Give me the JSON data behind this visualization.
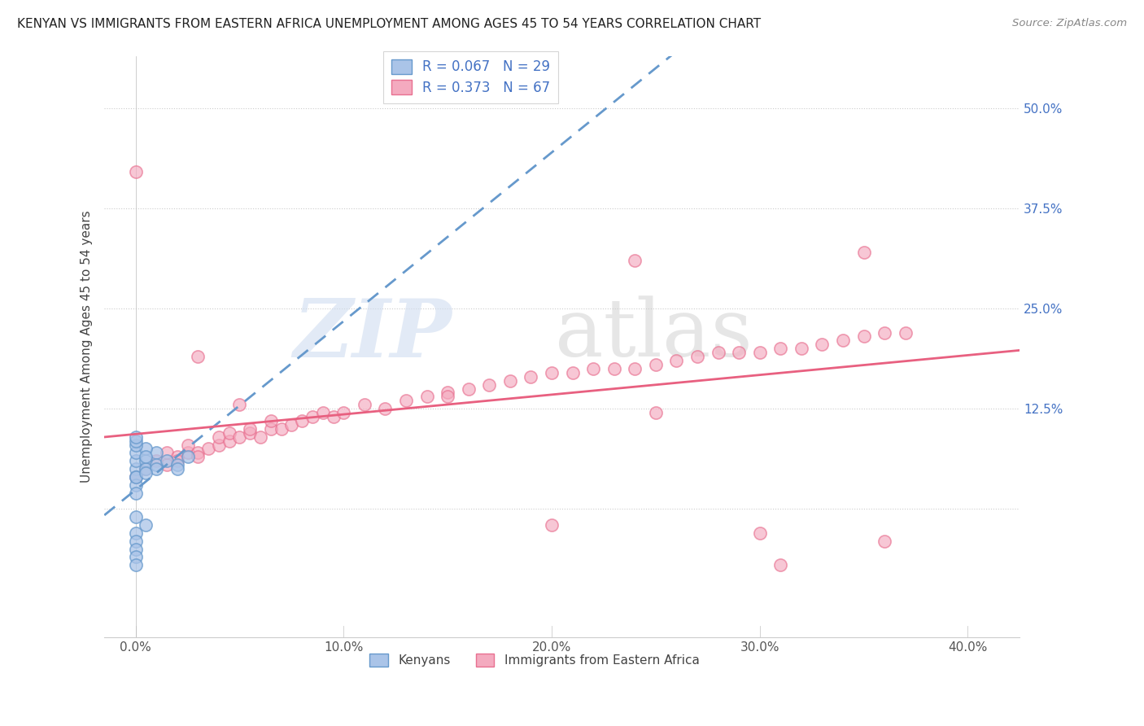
{
  "title": "KENYAN VS IMMIGRANTS FROM EASTERN AFRICA UNEMPLOYMENT AMONG AGES 45 TO 54 YEARS CORRELATION CHART",
  "source": "Source: ZipAtlas.com",
  "ylabel": "Unemployment Among Ages 45 to 54 years",
  "x_tick_labels": [
    "0.0%",
    "10.0%",
    "20.0%",
    "30.0%",
    "40.0%"
  ],
  "x_tick_values": [
    0.0,
    0.1,
    0.2,
    0.3,
    0.4
  ],
  "y_tick_labels_right": [
    "50.0%",
    "37.5%",
    "25.0%",
    "12.5%"
  ],
  "y_tick_values_right": [
    0.5,
    0.375,
    0.25,
    0.125
  ],
  "xlim": [
    -0.015,
    0.425
  ],
  "ylim": [
    -0.16,
    0.565
  ],
  "legend_labels": [
    "Kenyans",
    "Immigrants from Eastern Africa"
  ],
  "legend_R": [
    0.067,
    0.373
  ],
  "legend_N": [
    29,
    67
  ],
  "blue_color": "#aac4e8",
  "pink_color": "#f4aabf",
  "blue_edge_color": "#6699cc",
  "pink_edge_color": "#e87090",
  "blue_line_color": "#6699cc",
  "pink_line_color": "#e86080",
  "blue_text_color": "#4472c4",
  "grid_color": "#cccccc",
  "background_color": "#ffffff",
  "kenyans_x": [
    0.0,
    0.0,
    0.0,
    0.005,
    0.005,
    0.01,
    0.01,
    0.01,
    0.015,
    0.02,
    0.02,
    0.025,
    0.0,
    0.0,
    0.0,
    0.0,
    0.005,
    0.005,
    0.005,
    0.0,
    0.0,
    0.0,
    0.0,
    0.005,
    0.0,
    0.0,
    0.0,
    0.0,
    0.0
  ],
  "kenyans_y": [
    0.05,
    0.04,
    0.06,
    0.06,
    0.05,
    0.07,
    0.055,
    0.05,
    0.06,
    0.055,
    0.05,
    0.065,
    0.03,
    0.02,
    0.04,
    0.07,
    0.075,
    0.065,
    0.045,
    0.08,
    0.085,
    0.09,
    -0.01,
    -0.02,
    -0.03,
    -0.04,
    -0.05,
    -0.06,
    -0.07
  ],
  "eastern_x": [
    0.0,
    0.005,
    0.01,
    0.015,
    0.015,
    0.02,
    0.02,
    0.025,
    0.025,
    0.03,
    0.03,
    0.035,
    0.04,
    0.04,
    0.045,
    0.045,
    0.05,
    0.055,
    0.055,
    0.06,
    0.065,
    0.065,
    0.07,
    0.075,
    0.08,
    0.085,
    0.09,
    0.095,
    0.1,
    0.11,
    0.12,
    0.13,
    0.14,
    0.15,
    0.16,
    0.17,
    0.18,
    0.19,
    0.2,
    0.21,
    0.22,
    0.23,
    0.24,
    0.25,
    0.26,
    0.27,
    0.28,
    0.29,
    0.3,
    0.31,
    0.32,
    0.33,
    0.34,
    0.35,
    0.36,
    0.37,
    0.0,
    0.03,
    0.05,
    0.24,
    0.3,
    0.31,
    0.35,
    0.15,
    0.2,
    0.25,
    0.36
  ],
  "eastern_y": [
    0.04,
    0.05,
    0.06,
    0.055,
    0.07,
    0.065,
    0.06,
    0.07,
    0.08,
    0.07,
    0.065,
    0.075,
    0.08,
    0.09,
    0.085,
    0.095,
    0.09,
    0.095,
    0.1,
    0.09,
    0.1,
    0.11,
    0.1,
    0.105,
    0.11,
    0.115,
    0.12,
    0.115,
    0.12,
    0.13,
    0.125,
    0.135,
    0.14,
    0.145,
    0.15,
    0.155,
    0.16,
    0.165,
    0.17,
    0.17,
    0.175,
    0.175,
    0.175,
    0.18,
    0.185,
    0.19,
    0.195,
    0.195,
    0.195,
    0.2,
    0.2,
    0.205,
    0.21,
    0.215,
    0.22,
    0.22,
    0.42,
    0.19,
    0.13,
    0.31,
    -0.03,
    -0.07,
    0.32,
    0.14,
    -0.02,
    0.12,
    -0.04
  ]
}
